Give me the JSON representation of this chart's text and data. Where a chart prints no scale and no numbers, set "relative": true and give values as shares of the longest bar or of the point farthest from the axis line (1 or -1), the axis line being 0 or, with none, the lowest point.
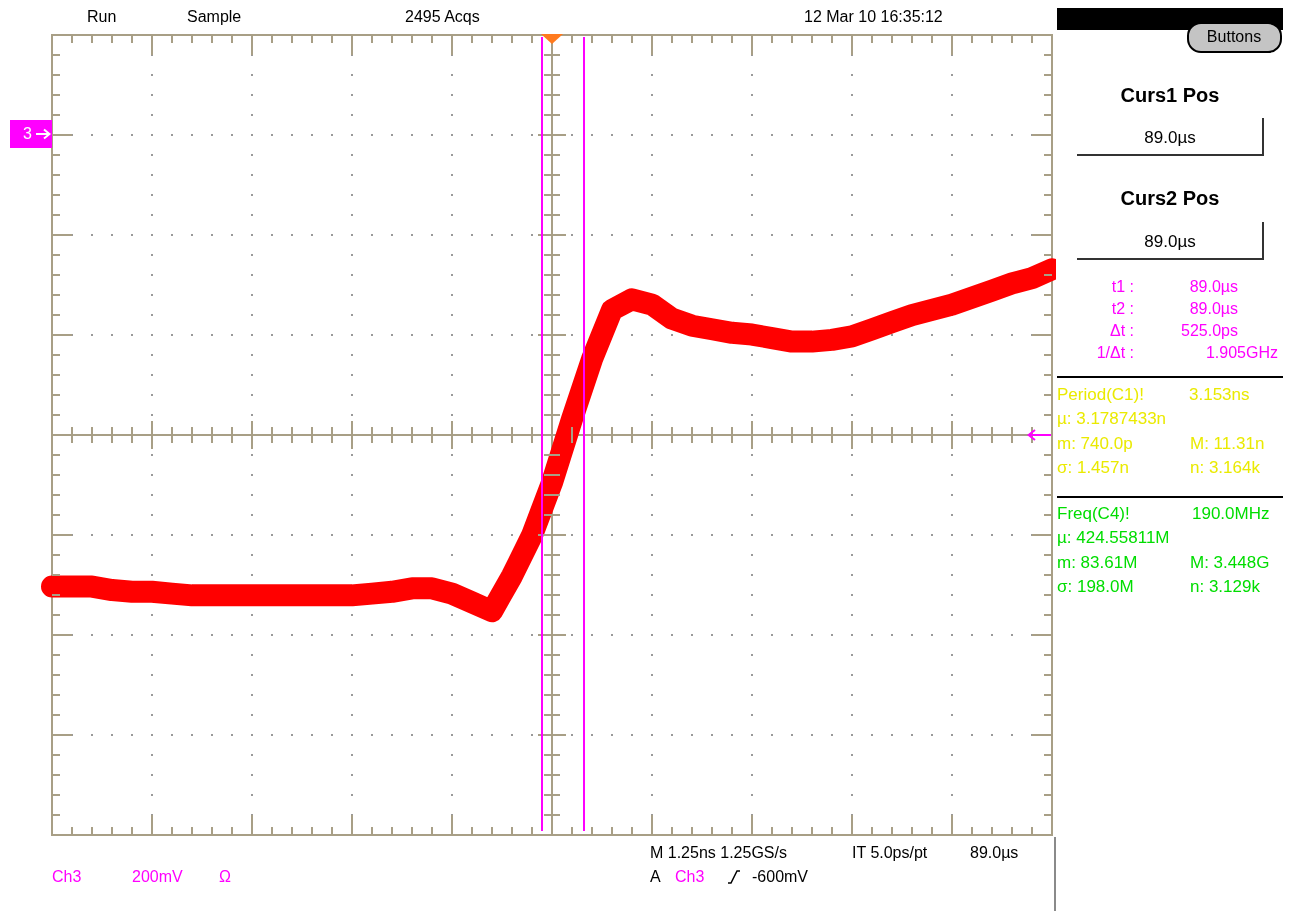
{
  "chart_data": {
    "type": "line",
    "relative": true,
    "grid": true,
    "marker": "none",
    "categories": [
      null,
      null,
      null,
      null,
      null,
      null,
      null,
      null,
      null,
      null,
      null,
      null,
      null,
      null,
      null,
      null,
      null,
      null,
      null,
      null,
      null,
      null,
      null,
      null,
      null,
      null,
      null,
      null,
      null,
      null,
      null,
      null,
      null,
      null,
      null,
      null,
      null,
      null,
      null,
      null,
      null,
      null,
      null,
      null,
      null,
      null,
      null,
      null,
      null,
      null,
      null
    ],
    "series": [
      {
        "color": "#ff0000",
        "values": [
          -0.86,
          -0.86,
          -0.86,
          -0.88,
          -0.89,
          -0.89,
          -0.9,
          -0.91,
          -0.91,
          -0.91,
          -0.91,
          -0.91,
          -0.91,
          -0.91,
          -0.91,
          -0.91,
          -0.9,
          -0.89,
          -0.87,
          -0.87,
          -0.9,
          -0.95,
          -1,
          -0.8,
          -0.57,
          -0.27,
          0.09,
          0.43,
          0.71,
          0.77,
          0.74,
          0.66,
          0.62,
          0.6,
          0.58,
          0.57,
          0.55,
          0.53,
          0.53,
          0.54,
          0.56,
          0.6,
          0.64,
          0.68,
          0.71,
          0.74,
          0.78,
          0.82,
          0.86,
          0.89,
          0.94
        ]
      }
    ],
    "annotations": [
      "Run",
      "Sample",
      "2495 Acqs",
      "12 Mar 10 16:35:12",
      "Buttons",
      "Curs1 Pos",
      "89.0µs",
      "Curs2 Pos",
      "89.0µs",
      "t1 :",
      "89.0µs",
      "t2 :",
      "89.0µs",
      "Δt :",
      "525.0ps",
      "1/Δt :",
      "1.905GHz",
      "Period(C1)!",
      "3.153ns",
      "µ: 3.1787433n",
      "m: 740.0p",
      "M: 11.31n",
      "σ: 1.457n",
      "n: 3.164k",
      "Freq(C4)!",
      "190.0MHz",
      "µ: 424.55811M",
      "m: 83.61M",
      "M: 3.448G",
      "σ: 198.0M",
      "n: 3.129k",
      "Ch3",
      "200mV",
      "Ω",
      "M 1.25ns 1.25GS/s",
      "IT 5.0ps/pt",
      "89.0µs",
      "A",
      "Ch3",
      "-600mV",
      "3"
    ]
  }
}
